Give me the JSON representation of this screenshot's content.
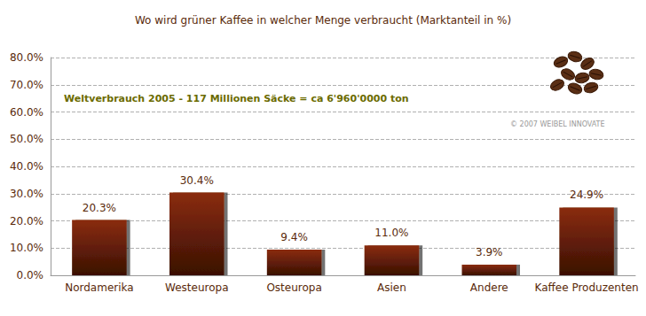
{
  "chart_data": {
    "type": "bar",
    "title": "Wo wird grüner Kaffee in welcher Menge verbraucht (Marktanteil in %)",
    "annotations": [
      "Weltverbrauch 2005 - 117 Millionen Säcke = ca 6'960'0000 ton",
      "© 2007 WEIBEL INNOVATE"
    ],
    "categories": [
      "Nordamerika",
      "Westeuropa",
      "Osteuropa",
      "Asien",
      "Andere",
      "Kaffee Produzenten"
    ],
    "values": [
      20.3,
      30.4,
      9.4,
      11.0,
      3.9,
      24.9
    ],
    "value_labels": [
      "20.3%",
      "30.4%",
      "9.4%",
      "11.0%",
      "3.9%",
      "24.9%"
    ],
    "color": "#8a2c0c",
    "ylim": [
      0,
      80
    ],
    "yticks": [
      {
        "value": 0,
        "label": "0.0%"
      },
      {
        "value": 10,
        "label": "10.0%"
      },
      {
        "value": 20,
        "label": "20.0%"
      },
      {
        "value": 30,
        "label": "30.0%"
      },
      {
        "value": 40,
        "label": "40.0%"
      },
      {
        "value": 50,
        "label": "50.0%"
      },
      {
        "value": 60,
        "label": "60.0%"
      },
      {
        "value": 70,
        "label": "70.0%"
      },
      {
        "value": 80,
        "label": "80.0%"
      }
    ],
    "grid": true,
    "data_labels": true
  }
}
